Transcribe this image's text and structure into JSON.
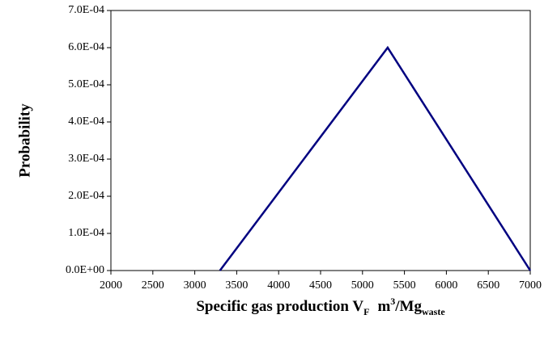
{
  "chart_data": {
    "type": "line",
    "x_label": [
      "Specific gas production V",
      "F",
      "m",
      "3",
      "/Mg",
      "waste"
    ],
    "y_label": "Probability",
    "x": [
      3300,
      5300,
      7000
    ],
    "series": [
      {
        "color": "#000080",
        "values": [
          0,
          0.0006,
          0
        ]
      }
    ],
    "xlim": [
      2000,
      7000
    ],
    "xticks": [
      2000,
      2500,
      3000,
      3500,
      4000,
      4500,
      5000,
      5500,
      6000,
      6500,
      7000
    ],
    "ylim": [
      0,
      0.0007
    ],
    "yticks": [
      {
        "value": 0,
        "label": "0.0E+00"
      },
      {
        "value": 0.0001,
        "label": "1.0E-04"
      },
      {
        "value": 0.0002,
        "label": "2.0E-04"
      },
      {
        "value": 0.0003,
        "label": "3.0E-04"
      },
      {
        "value": 0.0004,
        "label": "4.0E-04"
      },
      {
        "value": 0.0005,
        "label": "5.0E-04"
      },
      {
        "value": 0.0006,
        "label": "6.0E-04"
      },
      {
        "value": 0.0007,
        "label": "7.0E-04"
      }
    ],
    "grid": false
  }
}
